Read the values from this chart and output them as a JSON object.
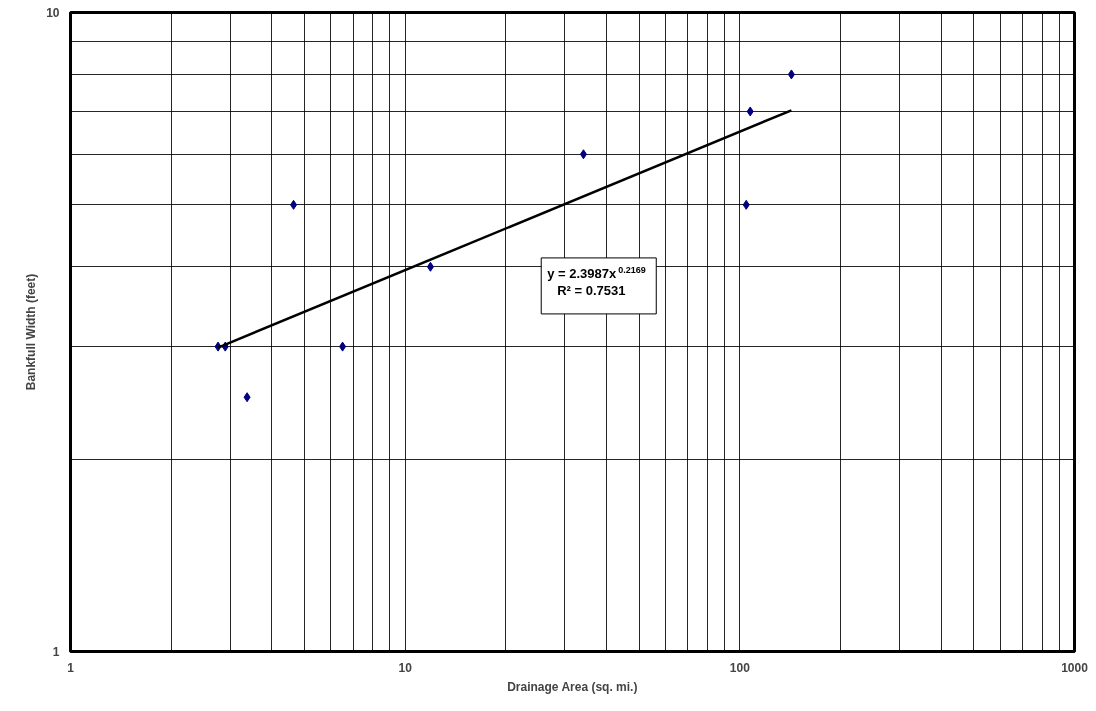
{
  "chart_data": {
    "type": "scatter",
    "xlabel": "Drainage Area (sq. mi.)",
    "ylabel": "Bankfull Width (feet)",
    "log": "xy",
    "grid": true,
    "xlim": [
      1,
      1000
    ],
    "ylim": [
      1,
      10
    ],
    "xticks": [
      1,
      {
        "value": 2,
        "label": null
      },
      {
        "value": 3,
        "label": null
      },
      {
        "value": 4,
        "label": null
      },
      {
        "value": 5,
        "label": null
      },
      {
        "value": 6,
        "label": null
      },
      {
        "value": 7,
        "label": null
      },
      {
        "value": 8,
        "label": null
      },
      {
        "value": 9,
        "label": null
      },
      10,
      {
        "value": 20,
        "label": null
      },
      {
        "value": 30,
        "label": null
      },
      {
        "value": 40,
        "label": null
      },
      {
        "value": 50,
        "label": null
      },
      {
        "value": 60,
        "label": null
      },
      {
        "value": 70,
        "label": null
      },
      {
        "value": 80,
        "label": null
      },
      {
        "value": 90,
        "label": null
      },
      100,
      {
        "value": 200,
        "label": null
      },
      {
        "value": 300,
        "label": null
      },
      {
        "value": 400,
        "label": null
      },
      {
        "value": 500,
        "label": null
      },
      {
        "value": 600,
        "label": null
      },
      {
        "value": 700,
        "label": null
      },
      {
        "value": 800,
        "label": null
      },
      {
        "value": 900,
        "label": null
      },
      1000
    ],
    "yticks": [
      1,
      {
        "value": 2,
        "label": null
      },
      {
        "value": 3,
        "label": null
      },
      {
        "value": 4,
        "label": null
      },
      {
        "value": 5,
        "label": null
      },
      {
        "value": 6,
        "label": null
      },
      {
        "value": 7,
        "label": null
      },
      {
        "value": 8,
        "label": null
      },
      {
        "value": 9,
        "label": null
      },
      10
    ],
    "series": [
      {
        "marker": "diamond",
        "color": "#000080",
        "x": [
          2.76,
          2.9,
          3.37,
          4.64,
          6.5,
          11.9,
          34.1,
          104.5,
          107.4,
          142.6
        ],
        "values": [
          3.0,
          3.0,
          2.5,
          5.0,
          3.0,
          4.0,
          6.0,
          5.0,
          7.0,
          8.0
        ]
      },
      {
        "type": "line",
        "marker": "none",
        "color": "#000000",
        "x": [
          2.76,
          142.6
        ],
        "values": [
          2.99,
          7.03
        ]
      }
    ],
    "annotations": [
      "y = 2.3987x$^{0.2169}$",
      "R² = 0.7531"
    ]
  }
}
